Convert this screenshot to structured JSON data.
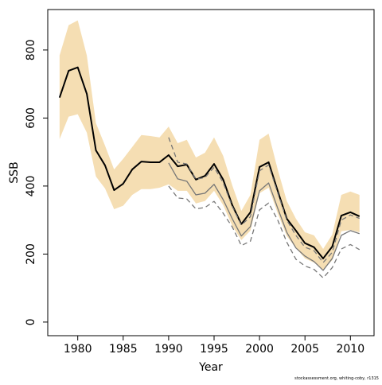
{
  "chart_data": {
    "type": "line",
    "x_label": "Year",
    "y_label": "SSB",
    "footer": "stockassessment.org, whiting-coby, r1315",
    "x": [
      1978,
      1979,
      1980,
      1981,
      1982,
      1983,
      1984,
      1985,
      1986,
      1987,
      1988,
      1989,
      1990,
      1991,
      1992,
      1993,
      1994,
      1995,
      1996,
      1997,
      1998,
      1999,
      2000,
      2001,
      2002,
      2003,
      2004,
      2005,
      2006,
      2007,
      2008,
      2009,
      2010,
      2011
    ],
    "xlim": [
      1976.7,
      2012.6
    ],
    "xticks": [
      1980,
      1985,
      1990,
      1995,
      2000,
      2005,
      2010
    ],
    "ylim": [
      -40,
      919
    ],
    "yticks": [
      0,
      200,
      400,
      600,
      800
    ],
    "band": {
      "color": "#f5deb3",
      "upper": [
        784,
        873,
        887,
        784,
        585,
        519,
        449,
        480,
        515,
        550,
        547,
        543,
        575,
        526,
        536,
        484,
        498,
        543,
        489,
        402,
        327,
        374,
        536,
        554,
        449,
        356,
        304,
        264,
        255,
        215,
        257,
        374,
        384,
        374
      ],
      "lower": [
        538,
        604,
        611,
        557,
        428,
        393,
        332,
        342,
        374,
        391,
        391,
        395,
        405,
        386,
        386,
        349,
        356,
        386,
        344,
        283,
        241,
        269,
        379,
        395,
        320,
        253,
        218,
        187,
        175,
        154,
        182,
        267,
        271,
        264
      ]
    },
    "series": [
      {
        "color": "#000000",
        "width": 2,
        "dash": false,
        "values": [
          660,
          739,
          749,
          671,
          505,
          461,
          388,
          407,
          449,
          472,
          470,
          470,
          491,
          458,
          463,
          419,
          430,
          465,
          419,
          344,
          288,
          323,
          456,
          470,
          386,
          304,
          269,
          232,
          220,
          187,
          222,
          313,
          323,
          311
        ]
      },
      {
        "color": "#777777",
        "width": 1.3,
        "dash": false,
        "values": [
          null,
          null,
          null,
          null,
          null,
          null,
          null,
          null,
          null,
          null,
          null,
          null,
          468,
          421,
          414,
          374,
          379,
          405,
          360,
          304,
          253,
          281,
          386,
          409,
          335,
          264,
          218,
          194,
          178,
          152,
          187,
          255,
          269,
          260
        ]
      },
      {
        "color": "#777777",
        "width": 1.3,
        "dash": true,
        "values": [
          null,
          null,
          null,
          null,
          null,
          null,
          null,
          null,
          null,
          null,
          null,
          null,
          543,
          470,
          465,
          420,
          425,
          455,
          410,
          340,
          285,
          310,
          445,
          462,
          380,
          300,
          255,
          220,
          210,
          175,
          205,
          300,
          315,
          305
        ]
      },
      {
        "color": "#777777",
        "width": 1.3,
        "dash": true,
        "values": [
          null,
          null,
          null,
          null,
          null,
          null,
          null,
          null,
          null,
          null,
          null,
          null,
          400,
          365,
          362,
          333,
          337,
          355,
          320,
          280,
          225,
          238,
          330,
          350,
          300,
          235,
          185,
          165,
          155,
          130,
          160,
          215,
          228,
          213
        ]
      }
    ]
  }
}
